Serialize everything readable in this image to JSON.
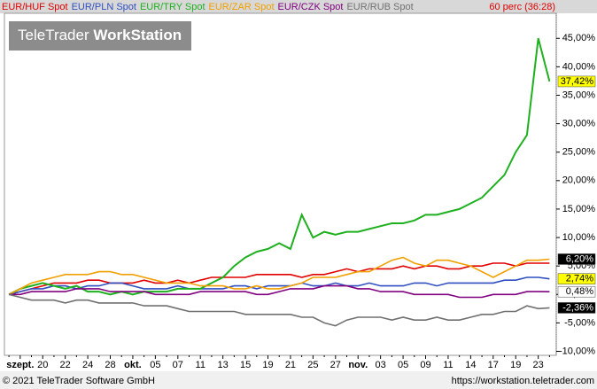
{
  "chart_data": {
    "type": "line",
    "status": "60 perc (36:28)",
    "watermark": [
      "TeleTrader",
      "WorkStation"
    ],
    "categories": [
      null,
      "szept.",
      null,
      "20",
      null,
      "22",
      null,
      "24",
      null,
      "28",
      null,
      "okt.",
      null,
      "05",
      null,
      "07",
      null,
      "11",
      null,
      "13",
      null,
      "15",
      null,
      "19",
      null,
      "21",
      null,
      "25",
      null,
      "27",
      null,
      "nov.",
      null,
      "03",
      null,
      "05",
      null,
      "09",
      null,
      "11",
      null,
      "14",
      null,
      "17",
      null,
      "19",
      null,
      "23",
      null
    ],
    "ylim": [
      -10.7,
      49.4
    ],
    "yticks": [
      {
        "value": 45,
        "label": "45,00%"
      },
      {
        "value": 40,
        "label": "40,00%"
      },
      {
        "value": 35,
        "label": "35,00%"
      },
      {
        "value": 30,
        "label": "30,00%"
      },
      {
        "value": 25,
        "label": "25,00%"
      },
      {
        "value": 20,
        "label": "20,00%"
      },
      {
        "value": 15,
        "label": "15,00%"
      },
      {
        "value": 10,
        "label": "10,00%"
      },
      {
        "value": 5,
        "label": "5,00%"
      },
      {
        "value": 0,
        "label": "0,00%"
      },
      {
        "value": -5,
        "label": "-5,00%"
      },
      {
        "value": -10,
        "label": "-10,00%"
      }
    ],
    "grid": false,
    "series": [
      {
        "name": "EUR/HUF Spot",
        "color": "#e00000",
        "values": [
          0,
          0.5,
          1,
          1.5,
          2,
          2,
          2,
          2.5,
          2.5,
          2,
          2,
          2,
          2.5,
          2,
          2,
          2.5,
          2,
          2.5,
          3,
          3,
          3,
          3,
          3.5,
          3.5,
          3.5,
          3.5,
          3,
          3.5,
          3.5,
          4,
          4.5,
          4,
          4.5,
          4.5,
          4.5,
          5,
          4.5,
          5,
          5,
          4.5,
          4.5,
          5,
          5,
          5.5,
          5.5,
          5,
          5.5,
          5.5,
          5.5
        ]
      },
      {
        "name": "EUR/PLN Spot",
        "color": "#2f4fc0",
        "label_bg": "#ffff00",
        "label_fg": "#000000",
        "values": [
          0,
          0.5,
          1,
          1,
          1.5,
          1.5,
          1,
          1.5,
          1.5,
          2,
          2,
          1.5,
          1,
          1,
          1,
          1.5,
          1,
          1,
          1,
          1,
          1.5,
          1.5,
          1,
          1.5,
          1.5,
          1.5,
          2,
          1.5,
          1.5,
          2,
          1.5,
          1.5,
          2,
          1.5,
          1.5,
          1.5,
          2,
          2,
          1.5,
          2,
          2,
          2,
          2,
          2,
          2.5,
          2.5,
          3,
          3,
          2.74
        ],
        "value_labels": [
          null,
          null,
          null,
          null,
          null,
          null,
          null,
          null,
          null,
          null,
          null,
          null,
          null,
          null,
          null,
          null,
          null,
          null,
          null,
          null,
          null,
          null,
          null,
          null,
          null,
          null,
          null,
          null,
          null,
          null,
          null,
          null,
          null,
          null,
          null,
          null,
          null,
          null,
          null,
          null,
          null,
          null,
          null,
          null,
          null,
          null,
          null,
          null,
          "2,74%"
        ]
      },
      {
        "name": "EUR/TRY Spot",
        "color": "#1fb01f",
        "label_bg": "#ffff00",
        "label_fg": "#000000",
        "values": [
          0,
          1,
          1.5,
          2,
          1.5,
          1,
          1.5,
          0.5,
          0.5,
          0,
          0.5,
          0,
          0.5,
          0.5,
          0.5,
          1,
          1,
          1,
          2,
          3,
          5,
          6.5,
          7.5,
          8,
          9,
          8,
          14,
          10,
          11,
          10.5,
          11,
          11,
          11.5,
          12,
          12.5,
          12.5,
          13,
          14,
          14,
          14.5,
          15,
          16,
          17,
          19,
          21,
          25,
          28,
          45,
          37.42
        ],
        "value_labels": [
          null,
          null,
          null,
          null,
          null,
          null,
          null,
          null,
          null,
          null,
          null,
          null,
          null,
          null,
          null,
          null,
          null,
          null,
          null,
          null,
          null,
          null,
          null,
          null,
          null,
          null,
          null,
          null,
          null,
          null,
          null,
          null,
          null,
          null,
          null,
          null,
          null,
          null,
          null,
          null,
          null,
          null,
          null,
          null,
          null,
          null,
          null,
          null,
          "37,42%"
        ]
      },
      {
        "name": "EUR/ZAR Spot",
        "color": "#f0a000",
        "label_bg": "#000000",
        "label_fg": "#ffffff",
        "values": [
          0,
          1,
          2,
          2.5,
          3,
          3.5,
          3.5,
          3.5,
          4,
          4,
          3.5,
          3.5,
          3,
          2.5,
          2,
          2,
          2,
          1.5,
          1.5,
          1.5,
          1,
          1,
          1.5,
          1,
          1,
          1.5,
          2,
          3,
          3,
          3,
          3.5,
          4,
          4,
          5,
          6,
          6.5,
          5.5,
          5,
          6,
          6,
          5.5,
          5,
          4,
          3,
          4,
          5,
          6,
          6,
          6.2
        ],
        "value_labels": [
          null,
          null,
          null,
          null,
          null,
          null,
          null,
          null,
          null,
          null,
          null,
          null,
          null,
          null,
          null,
          null,
          null,
          null,
          null,
          null,
          null,
          null,
          null,
          null,
          null,
          null,
          null,
          null,
          null,
          null,
          null,
          null,
          null,
          null,
          null,
          null,
          null,
          null,
          null,
          null,
          null,
          null,
          null,
          null,
          null,
          null,
          null,
          null,
          "6,20%"
        ]
      },
      {
        "name": "EUR/CZK Spot",
        "color": "#800080",
        "label_bg": "#ffffff",
        "label_fg": "#000000",
        "values": [
          0,
          0,
          0.5,
          0.5,
          0.5,
          0.5,
          1,
          1,
          1,
          0.5,
          0.5,
          0.5,
          0.5,
          0,
          0,
          0,
          0,
          0.5,
          0.5,
          0.5,
          0.5,
          0.5,
          0,
          0,
          0.5,
          1,
          1,
          1,
          1.5,
          1.5,
          1.5,
          1,
          1,
          0.5,
          0.5,
          0.5,
          0,
          0,
          0,
          0,
          -0.5,
          -0.5,
          -0.5,
          0,
          0,
          0,
          0.5,
          0.5,
          0.48
        ],
        "value_labels": [
          null,
          null,
          null,
          null,
          null,
          null,
          null,
          null,
          null,
          null,
          null,
          null,
          null,
          null,
          null,
          null,
          null,
          null,
          null,
          null,
          null,
          null,
          null,
          null,
          null,
          null,
          null,
          null,
          null,
          null,
          null,
          null,
          null,
          null,
          null,
          null,
          null,
          null,
          null,
          null,
          null,
          null,
          null,
          null,
          null,
          null,
          null,
          null,
          "0,48%"
        ]
      },
      {
        "name": "EUR/RUB Spot",
        "color": "#707070",
        "label_bg": "#000000",
        "label_fg": "#ffffff",
        "values": [
          0,
          -0.5,
          -1,
          -1,
          -1,
          -1.5,
          -1,
          -1,
          -1.5,
          -1.5,
          -1.5,
          -1.5,
          -2,
          -2,
          -2,
          -2.5,
          -3,
          -3,
          -3,
          -3,
          -3,
          -3.5,
          -3.5,
          -3.5,
          -3.5,
          -3.5,
          -4,
          -4,
          -5,
          -5.5,
          -4.5,
          -4,
          -4,
          -4,
          -4.5,
          -4,
          -4.5,
          -4.5,
          -4,
          -4.5,
          -4.5,
          -4,
          -3.5,
          -3.5,
          -3,
          -3,
          -2,
          -2.5,
          -2.36
        ],
        "value_labels": [
          null,
          null,
          null,
          null,
          null,
          null,
          null,
          null,
          null,
          null,
          null,
          null,
          null,
          null,
          null,
          null,
          null,
          null,
          null,
          null,
          null,
          null,
          null,
          null,
          null,
          null,
          null,
          null,
          null,
          null,
          null,
          null,
          null,
          null,
          null,
          null,
          null,
          null,
          null,
          null,
          null,
          null,
          null,
          null,
          null,
          null,
          null,
          null,
          "-2,36%"
        ]
      }
    ]
  },
  "footer": {
    "left": "© 2021 TeleTrader Software GmbH",
    "right": "https://workstation.teletrader.com"
  }
}
